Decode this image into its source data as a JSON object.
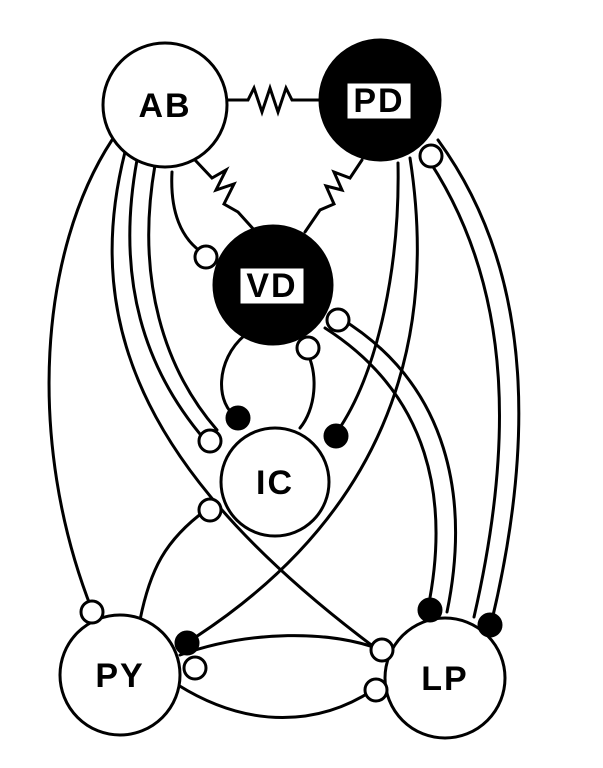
{
  "diagram": {
    "colors": {
      "ink": "#000000",
      "paper": "#ffffff"
    },
    "nodes": [
      {
        "id": "AB",
        "label": "AB",
        "fill": "white"
      },
      {
        "id": "PD",
        "label": "PD",
        "fill": "black"
      },
      {
        "id": "VD",
        "label": "VD",
        "fill": "black"
      },
      {
        "id": "IC",
        "label": "IC",
        "fill": "white"
      },
      {
        "id": "PY",
        "label": "PY",
        "fill": "white"
      },
      {
        "id": "LP",
        "label": "LP",
        "fill": "white"
      }
    ],
    "electrical_coupling": [
      {
        "from": "AB",
        "to": "PD"
      },
      {
        "from": "AB",
        "to": "VD"
      },
      {
        "from": "PD",
        "to": "VD"
      }
    ],
    "synapse_types": {
      "open": "open circle terminal",
      "filled": "filled circle terminal"
    }
  }
}
